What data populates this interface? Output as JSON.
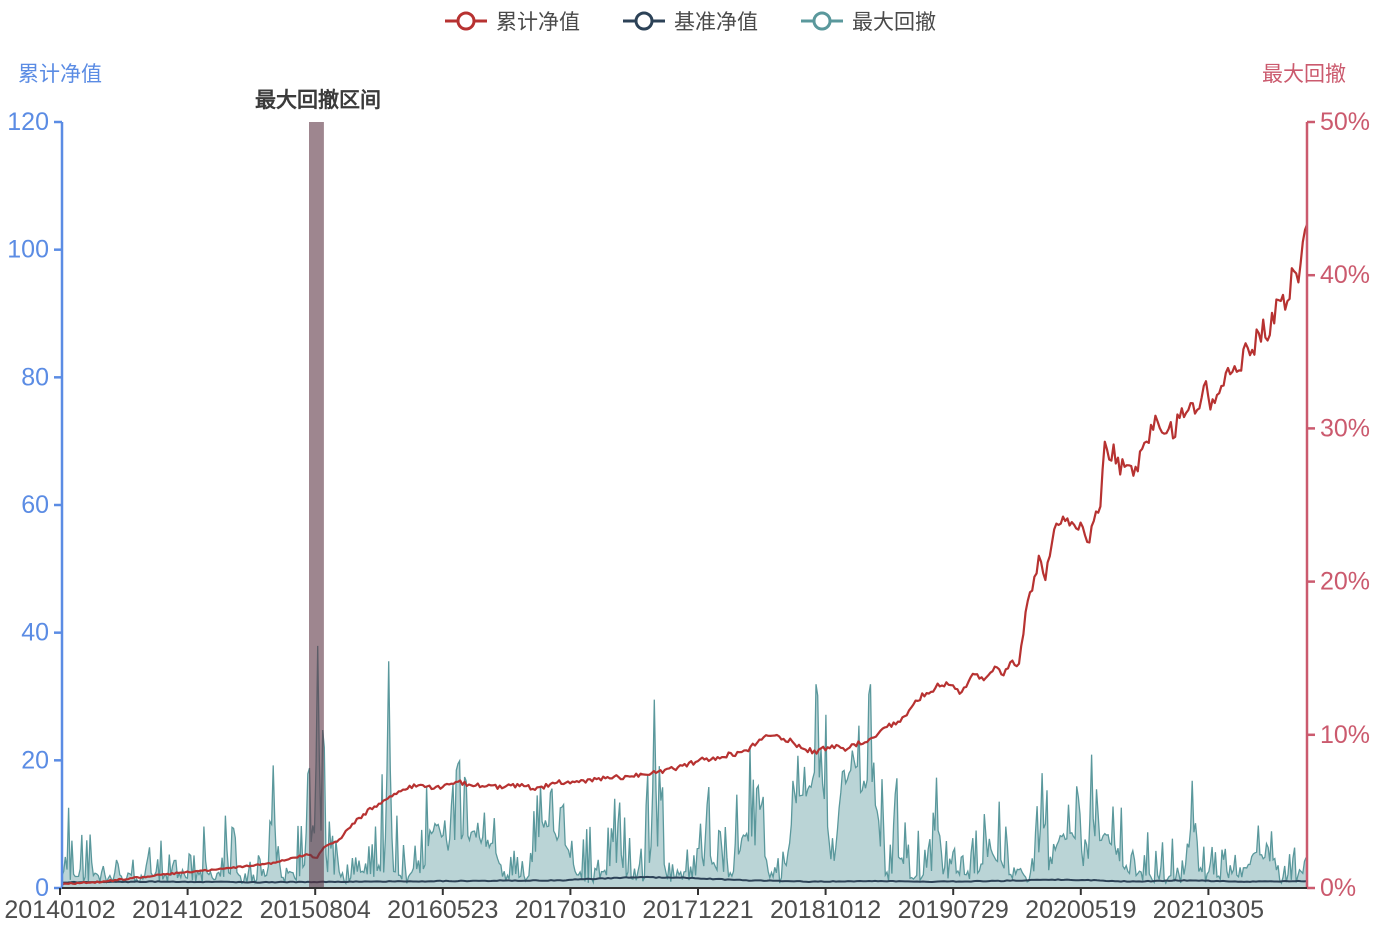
{
  "colors": {
    "cumulative_line": "#b73231",
    "benchmark_line": "#2c4257",
    "drawdown_stroke": "#5a989c",
    "drawdown_fill": "rgba(90,152,158,0.42)",
    "left_axis": "#5b8ce4",
    "right_axis": "#cb5a6e",
    "x_axis": "#333333",
    "band_fill": "rgba(94,54,68,0.6)",
    "text": "#4a4a4a"
  },
  "legend": {
    "items": [
      {
        "label": "累计净值",
        "color": "#b73231"
      },
      {
        "label": "基准净值",
        "color": "#2c4257"
      },
      {
        "label": "最大回撤",
        "color": "#5a989c"
      }
    ]
  },
  "left_axis": {
    "title": "累计净值",
    "tick_labels": [
      "0",
      "20",
      "40",
      "60",
      "80",
      "100",
      "120"
    ],
    "range": [
      0,
      120
    ]
  },
  "right_axis": {
    "title": "最大回撤",
    "tick_labels": [
      "0%",
      "10%",
      "20%",
      "30%",
      "40%",
      "50%"
    ],
    "range": [
      0,
      50
    ]
  },
  "annotation": {
    "text": "最大回撤区间"
  },
  "chart_data": {
    "type": "line",
    "x_tick_labels": [
      "20140102",
      "20141022",
      "20150804",
      "20160523",
      "20170310",
      "20171221",
      "20181012",
      "20190729",
      "20200519",
      "20210305"
    ],
    "grid": false,
    "legend_position": "top",
    "max_drawdown_band": {
      "x_from_frac": 0.1984,
      "x_to_frac": 0.2104,
      "label": "最大回撤区间"
    },
    "series": [
      {
        "name": "累计净值",
        "axis": "right",
        "unit": "%",
        "keypoints": [
          [
            0.0,
            0.25
          ],
          [
            0.031,
            0.4
          ],
          [
            0.063,
            0.7
          ],
          [
            0.095,
            1.0
          ],
          [
            0.135,
            1.3
          ],
          [
            0.167,
            1.6
          ],
          [
            0.187,
            2.0
          ],
          [
            0.198,
            2.2
          ],
          [
            0.204,
            1.9
          ],
          [
            0.21,
            2.6
          ],
          [
            0.223,
            3.2
          ],
          [
            0.235,
            4.3
          ],
          [
            0.247,
            5.1
          ],
          [
            0.263,
            6.0
          ],
          [
            0.284,
            6.7
          ],
          [
            0.3,
            6.5
          ],
          [
            0.318,
            6.9
          ],
          [
            0.334,
            6.7
          ],
          [
            0.35,
            6.6
          ],
          [
            0.366,
            6.7
          ],
          [
            0.382,
            6.5
          ],
          [
            0.398,
            6.9
          ],
          [
            0.42,
            7.0
          ],
          [
            0.444,
            7.2
          ],
          [
            0.468,
            7.4
          ],
          [
            0.492,
            7.8
          ],
          [
            0.516,
            8.4
          ],
          [
            0.537,
            8.7
          ],
          [
            0.551,
            9.0
          ],
          [
            0.562,
            9.8
          ],
          [
            0.573,
            9.9
          ],
          [
            0.585,
            9.6
          ],
          [
            0.594,
            9.1
          ],
          [
            0.605,
            8.9
          ],
          [
            0.617,
            9.2
          ],
          [
            0.629,
            9.1
          ],
          [
            0.639,
            9.4
          ],
          [
            0.651,
            9.8
          ],
          [
            0.661,
            10.5
          ],
          [
            0.673,
            11.0
          ],
          [
            0.685,
            12.0
          ],
          [
            0.694,
            12.8
          ],
          [
            0.704,
            13.2
          ],
          [
            0.713,
            13.4
          ],
          [
            0.721,
            12.9
          ],
          [
            0.729,
            13.5
          ],
          [
            0.734,
            14.0
          ],
          [
            0.741,
            13.4
          ],
          [
            0.75,
            14.4
          ],
          [
            0.757,
            14.0
          ],
          [
            0.763,
            14.7
          ],
          [
            0.768,
            14.2
          ],
          [
            0.774,
            17.9
          ],
          [
            0.78,
            19.8
          ],
          [
            0.785,
            21.5
          ],
          [
            0.79,
            20.3
          ],
          [
            0.796,
            23.3
          ],
          [
            0.803,
            24.0
          ],
          [
            0.811,
            23.8
          ],
          [
            0.819,
            23.5
          ],
          [
            0.825,
            22.6
          ],
          [
            0.83,
            24.8
          ],
          [
            0.834,
            25.1
          ],
          [
            0.838,
            29.2
          ],
          [
            0.842,
            27.5
          ],
          [
            0.846,
            28.6
          ],
          [
            0.849,
            27.2
          ],
          [
            0.854,
            27.9
          ],
          [
            0.86,
            27.6
          ],
          [
            0.866,
            28.1
          ],
          [
            0.873,
            29.4
          ],
          [
            0.879,
            30.3
          ],
          [
            0.883,
            29.6
          ],
          [
            0.888,
            30.5
          ],
          [
            0.893,
            30.0
          ],
          [
            0.9,
            30.9
          ],
          [
            0.904,
            31.4
          ],
          [
            0.908,
            30.9
          ],
          [
            0.914,
            31.6
          ],
          [
            0.919,
            32.3
          ],
          [
            0.923,
            31.8
          ],
          [
            0.929,
            32.7
          ],
          [
            0.935,
            33.5
          ],
          [
            0.941,
            33.0
          ],
          [
            0.946,
            34.3
          ],
          [
            0.951,
            35.2
          ],
          [
            0.955,
            34.4
          ],
          [
            0.959,
            35.7
          ],
          [
            0.965,
            36.5
          ],
          [
            0.969,
            35.9
          ],
          [
            0.973,
            37.4
          ],
          [
            0.977,
            38.4
          ],
          [
            0.981,
            37.7
          ],
          [
            0.985,
            39.1
          ],
          [
            0.989,
            40.4
          ],
          [
            0.992,
            39.6
          ],
          [
            0.995,
            41.6
          ],
          [
            0.997,
            42.4
          ],
          [
            1.0,
            43.3
          ]
        ]
      },
      {
        "name": "基准净值",
        "axis": "left",
        "unit": "nav",
        "keypoints": [
          [
            0,
            0.9
          ],
          [
            0.08,
            1.0
          ],
          [
            0.16,
            0.9
          ],
          [
            0.24,
            1.0
          ],
          [
            0.32,
            1.1
          ],
          [
            0.4,
            1.2
          ],
          [
            0.46,
            1.7
          ],
          [
            0.5,
            1.6
          ],
          [
            0.55,
            1.2
          ],
          [
            0.6,
            1.0
          ],
          [
            0.65,
            1.1
          ],
          [
            0.7,
            1.0
          ],
          [
            0.75,
            1.1
          ],
          [
            0.8,
            1.3
          ],
          [
            0.83,
            1.2
          ],
          [
            0.86,
            1.0
          ],
          [
            0.9,
            1.2
          ],
          [
            0.95,
            1.0
          ],
          [
            1,
            1.1
          ]
        ]
      },
      {
        "name": "最大回撤",
        "axis": "right",
        "unit": "%",
        "style": "spiky-area",
        "envelope": [
          [
            0.0,
            5.5,
            0
          ],
          [
            0.006,
            6.0,
            0
          ],
          [
            0.014,
            3.0,
            0
          ],
          [
            0.021,
            5.7,
            0
          ],
          [
            0.027,
            2.0,
            0
          ],
          [
            0.035,
            1.5,
            0
          ],
          [
            0.043,
            2.5,
            0
          ],
          [
            0.051,
            1.5,
            0
          ],
          [
            0.059,
            2.0,
            0
          ],
          [
            0.071,
            2.8,
            0
          ],
          [
            0.079,
            3.2,
            0
          ],
          [
            0.087,
            2.2,
            0
          ],
          [
            0.095,
            1.5,
            0
          ],
          [
            0.107,
            3.0,
            0
          ],
          [
            0.115,
            6.3,
            0
          ],
          [
            0.123,
            3.5,
            0
          ],
          [
            0.133,
            5.2,
            0
          ],
          [
            0.143,
            2.5,
            0
          ],
          [
            0.153,
            3.5,
            0
          ],
          [
            0.161,
            2.5,
            0
          ],
          [
            0.169,
            8.0,
            0
          ],
          [
            0.175,
            5.5,
            0
          ],
          [
            0.183,
            3.0,
            0
          ],
          [
            0.191,
            4.5,
            0.2
          ],
          [
            0.199,
            9.0,
            0.3
          ],
          [
            0.206,
            15.8,
            0.3
          ],
          [
            0.209,
            12.0,
            0.3
          ],
          [
            0.212,
            9.2,
            0.2
          ],
          [
            0.218,
            4.5,
            0
          ],
          [
            0.227,
            2.5,
            0
          ],
          [
            0.235,
            2.0,
            0.5
          ],
          [
            0.243,
            3.5,
            0.3
          ],
          [
            0.254,
            5.0,
            0
          ],
          [
            0.263,
            14.8,
            0
          ],
          [
            0.27,
            4.0,
            0
          ],
          [
            0.278,
            2.5,
            0
          ],
          [
            0.288,
            3.5,
            0.2
          ],
          [
            0.297,
            9.3,
            0.45
          ],
          [
            0.304,
            8.5,
            0.5
          ],
          [
            0.31,
            5.0,
            0.5
          ],
          [
            0.316,
            8.6,
            0.45
          ],
          [
            0.324,
            8.0,
            0.45
          ],
          [
            0.333,
            6.3,
            0.6
          ],
          [
            0.341,
            5.0,
            0.65
          ],
          [
            0.348,
            4.8,
            0.6
          ],
          [
            0.356,
            2.0,
            0.2
          ],
          [
            0.364,
            2.5,
            0
          ],
          [
            0.372,
            1.5,
            0
          ],
          [
            0.382,
            6.8,
            0.5
          ],
          [
            0.388,
            8.5,
            0.55
          ],
          [
            0.394,
            6.5,
            0.6
          ],
          [
            0.4,
            5.8,
            0.6
          ],
          [
            0.406,
            5.2,
            0.55
          ],
          [
            0.414,
            3.0,
            0.3
          ],
          [
            0.424,
            4.5,
            0
          ],
          [
            0.432,
            3.2,
            0
          ],
          [
            0.442,
            6.6,
            0.3
          ],
          [
            0.45,
            5.5,
            0.3
          ],
          [
            0.458,
            3.0,
            0
          ],
          [
            0.468,
            8.3,
            0
          ],
          [
            0.476,
            12.3,
            0
          ],
          [
            0.482,
            7.0,
            0.2
          ],
          [
            0.49,
            3.0,
            0
          ],
          [
            0.498,
            4.5,
            0
          ],
          [
            0.506,
            3.5,
            0.2
          ],
          [
            0.514,
            5.5,
            0.25
          ],
          [
            0.522,
            7.5,
            0.25
          ],
          [
            0.53,
            5.0,
            0.2
          ],
          [
            0.538,
            4.0,
            0.2
          ],
          [
            0.546,
            8.5,
            0.4
          ],
          [
            0.554,
            9.5,
            0.4
          ],
          [
            0.562,
            7.0,
            0.3
          ],
          [
            0.57,
            4.0,
            0
          ],
          [
            0.578,
            3.0,
            0
          ],
          [
            0.586,
            10.0,
            0.5
          ],
          [
            0.593,
            12.0,
            0.6
          ],
          [
            0.599,
            11.0,
            0.65
          ],
          [
            0.606,
            13.3,
            0.6
          ],
          [
            0.613,
            12.0,
            0.55
          ],
          [
            0.619,
            6.0,
            0.2
          ],
          [
            0.625,
            12.5,
            0.55
          ],
          [
            0.631,
            13.0,
            0.65
          ],
          [
            0.638,
            12.0,
            0.7
          ],
          [
            0.643,
            10.5,
            0.65
          ],
          [
            0.649,
            13.3,
            0.6
          ],
          [
            0.655,
            12.0,
            0.5
          ],
          [
            0.66,
            6.0,
            0.2
          ],
          [
            0.665,
            3.0,
            0
          ],
          [
            0.67,
            8.0,
            0.3
          ],
          [
            0.675,
            6.0,
            0.35
          ],
          [
            0.681,
            3.0,
            0
          ],
          [
            0.687,
            4.0,
            0
          ],
          [
            0.695,
            3.0,
            0
          ],
          [
            0.703,
            7.2,
            0
          ],
          [
            0.711,
            4.0,
            0.2
          ],
          [
            0.719,
            2.5,
            0
          ],
          [
            0.727,
            2.0,
            0
          ],
          [
            0.735,
            4.5,
            0.2
          ],
          [
            0.741,
            7.0,
            0.3
          ],
          [
            0.748,
            6.5,
            0.35
          ],
          [
            0.756,
            6.0,
            0.3
          ],
          [
            0.763,
            3.5,
            0
          ],
          [
            0.771,
            2.5,
            0
          ],
          [
            0.779,
            4.0,
            0.2
          ],
          [
            0.787,
            7.5,
            0
          ],
          [
            0.795,
            6.0,
            0.3
          ],
          [
            0.801,
            7.2,
            0.5
          ],
          [
            0.81,
            7.2,
            0.55
          ],
          [
            0.819,
            7.0,
            0.4
          ],
          [
            0.823,
            3.0,
            0
          ],
          [
            0.827,
            8.7,
            0.4
          ],
          [
            0.832,
            7.5,
            0.5
          ],
          [
            0.84,
            7.8,
            0.45
          ],
          [
            0.848,
            6.0,
            0.4
          ],
          [
            0.853,
            5.0,
            0.3
          ],
          [
            0.861,
            4.3,
            0
          ],
          [
            0.87,
            4.2,
            0
          ],
          [
            0.878,
            2.5,
            0
          ],
          [
            0.89,
            3.8,
            0
          ],
          [
            0.898,
            2.5,
            0
          ],
          [
            0.908,
            7.0,
            0
          ],
          [
            0.915,
            3.5,
            0.2
          ],
          [
            0.924,
            3.0,
            0
          ],
          [
            0.93,
            2.5,
            0
          ],
          [
            0.937,
            3.0,
            0
          ],
          [
            0.943,
            2.5,
            0
          ],
          [
            0.95,
            3.5,
            0.3
          ],
          [
            0.957,
            4.4,
            0.55
          ],
          [
            0.965,
            4.2,
            0.55
          ],
          [
            0.973,
            4.0,
            0.5
          ],
          [
            0.981,
            2.5,
            0
          ],
          [
            0.988,
            3.0,
            0
          ],
          [
            0.994,
            2.5,
            0
          ],
          [
            1.0,
            2.0,
            0
          ]
        ],
        "notable_spikes": [
          [
            0.169,
            8.0
          ],
          [
            0.206,
            15.8
          ],
          [
            0.263,
            14.8
          ],
          [
            0.476,
            12.3
          ],
          [
            0.606,
            13.3
          ],
          [
            0.649,
            13.3
          ],
          [
            0.703,
            7.2
          ],
          [
            0.787,
            7.5
          ],
          [
            0.827,
            8.7
          ],
          [
            0.908,
            7.0
          ]
        ]
      }
    ]
  }
}
